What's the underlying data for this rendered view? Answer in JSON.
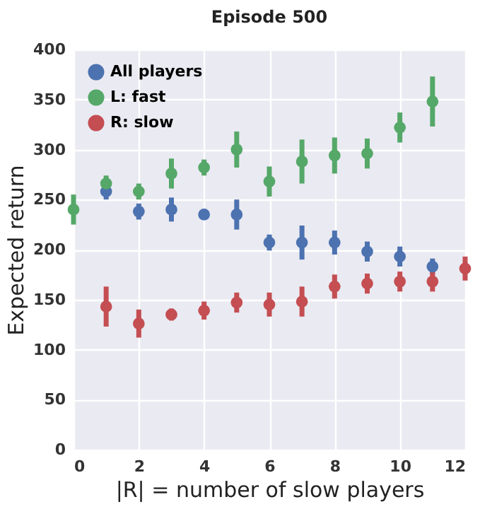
{
  "chart_data": {
    "type": "scatter",
    "title": "Episode 500",
    "xlabel": "|R| = number of slow players",
    "ylabel": "Expected return",
    "xlim": [
      0,
      12
    ],
    "xticks": [
      0,
      2,
      4,
      6,
      8,
      10,
      12
    ],
    "ylim": [
      0,
      400
    ],
    "yticks": [
      0,
      50,
      100,
      150,
      200,
      250,
      300,
      350,
      400
    ],
    "grid": true,
    "legend": "top left",
    "marker": "circle",
    "series": [
      {
        "name": "All players",
        "color": "#4c72b0",
        "x": [
          1,
          2,
          3,
          4,
          5,
          6,
          7,
          8,
          9,
          10,
          11
        ],
        "values": [
          258,
          238,
          240,
          235,
          235,
          207,
          207,
          207,
          198,
          193,
          183
        ],
        "errors": [
          8,
          8,
          12,
          5,
          15,
          8,
          17,
          12,
          10,
          10,
          8
        ]
      },
      {
        "name": "L: fast",
        "color": "#55a868",
        "x": [
          0,
          1,
          2,
          3,
          4,
          5,
          6,
          7,
          8,
          9,
          10,
          11
        ],
        "values": [
          240,
          266,
          258,
          276,
          282,
          300,
          268,
          288,
          294,
          296,
          322,
          348
        ],
        "errors": [
          15,
          8,
          8,
          15,
          8,
          18,
          15,
          22,
          18,
          15,
          15,
          25
        ]
      },
      {
        "name": "R: slow",
        "color": "#c44e52",
        "x": [
          1,
          2,
          3,
          4,
          5,
          6,
          7,
          8,
          9,
          10,
          11,
          12
        ],
        "values": [
          143,
          126,
          135,
          139,
          147,
          145,
          148,
          163,
          166,
          168,
          168,
          181
        ],
        "errors": [
          20,
          14,
          6,
          9,
          10,
          12,
          15,
          12,
          10,
          10,
          10,
          12
        ]
      }
    ]
  }
}
